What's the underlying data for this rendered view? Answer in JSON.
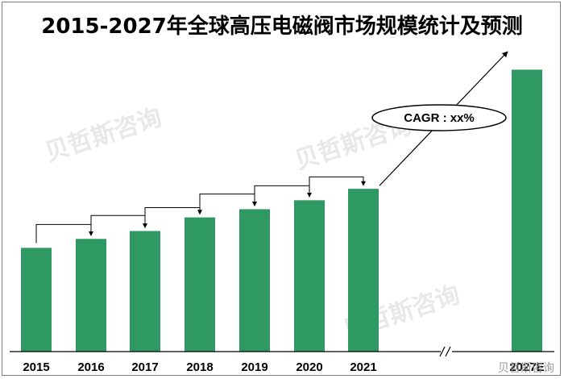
{
  "chart_data": {
    "type": "bar",
    "title": "2015-2027年全球高压电磁阀市场规模统计及预测",
    "categories": [
      "2015",
      "2016",
      "2017",
      "2018",
      "2019",
      "2020",
      "2021",
      "2027E"
    ],
    "values": [
      29,
      31.5,
      33.7,
      37.5,
      39.8,
      42.3,
      45.5,
      78.8
    ],
    "xlabel": "",
    "ylabel": "",
    "ylim": [
      0,
      87
    ],
    "grid": false,
    "legend": "none",
    "axis_break_between": [
      "2021",
      "2027E"
    ],
    "annotation": "CAGR : xx%",
    "bar_color": "#2e9962"
  },
  "watermark": "贝哲斯咨询",
  "attribution": "贝哲斯咨询"
}
